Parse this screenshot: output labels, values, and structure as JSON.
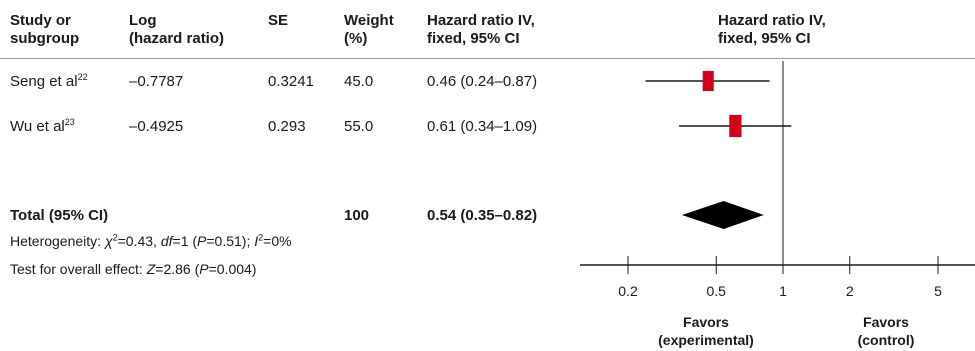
{
  "header": {
    "study": [
      "Study or",
      "subgroup"
    ],
    "log_hr": [
      "Log",
      "(hazard ratio)"
    ],
    "se": "SE",
    "weight": [
      "Weight",
      "(%)"
    ],
    "hr": [
      "Hazard ratio IV,",
      "fixed, 95% CI"
    ],
    "plot": [
      "Hazard ratio IV,",
      "fixed, 95% CI"
    ]
  },
  "studies": [
    {
      "name": "Seng et al",
      "ref": "22",
      "log_hr": "–0.7787",
      "se": "0.3241",
      "weight": "45.0",
      "ci_text": "0.46 (0.24–0.87)"
    },
    {
      "name": "Wu et al",
      "ref": "23",
      "log_hr": "–0.4925",
      "se": "0.293",
      "weight": "55.0",
      "ci_text": "0.61 (0.34–1.09)"
    }
  ],
  "total": {
    "label": "Total (95% CI)",
    "weight": "100",
    "ci_text": "0.54 (0.35–0.82)"
  },
  "heterogeneity": {
    "prefix": "Heterogeneity: ",
    "chi": "χ",
    "chi_sup": "2",
    "chi_val": "=0.43, ",
    "df": "df",
    "df_val": "=1 (",
    "p": "P",
    "p_val": "=0.51); ",
    "i": "I",
    "i_sup": "2",
    "i_val": "=0%"
  },
  "overall": {
    "prefix": "Test for overall effect: ",
    "z": "Z",
    "z_val": "=2.86 (",
    "p": "P",
    "p_val": "=0.004)"
  },
  "favors": {
    "left": [
      "Favors",
      "(experimental)"
    ],
    "right": [
      "Favors",
      "(control)"
    ]
  },
  "colors": {
    "square": "#d0021b",
    "line": "#1a1a1a",
    "diamond": "#000000"
  },
  "chart_data": {
    "type": "forest",
    "scale": "log",
    "xlim": [
      0.15,
      6.5
    ],
    "reference_line": 1,
    "x_ticks": [
      0.2,
      0.5,
      1,
      2,
      5
    ],
    "x_tick_labels": [
      "0.2",
      "0.5",
      "1",
      "2",
      "5"
    ],
    "studies": [
      {
        "name": "Seng et al",
        "hr": 0.46,
        "lower": 0.24,
        "upper": 0.87,
        "weight": 45.0
      },
      {
        "name": "Wu et al",
        "hr": 0.61,
        "lower": 0.34,
        "upper": 1.09,
        "weight": 55.0
      }
    ],
    "pooled": {
      "hr": 0.54,
      "lower": 0.35,
      "upper": 0.82
    }
  }
}
